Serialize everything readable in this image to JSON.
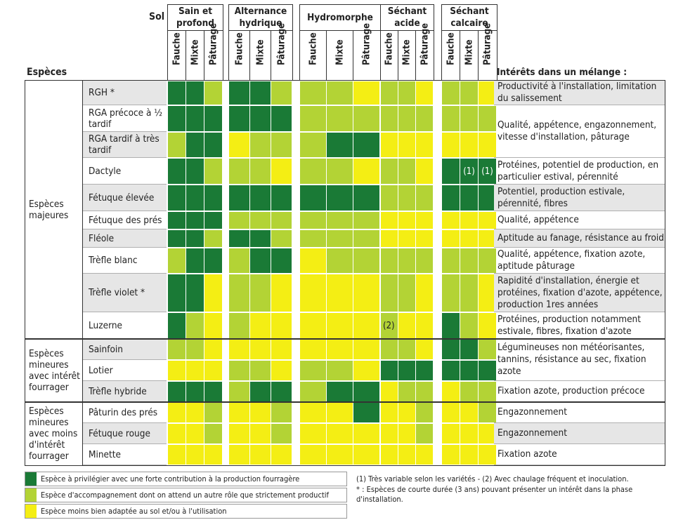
{
  "header": {
    "sol_label": "Sol",
    "especes_label": "Espèces",
    "interets_label": "Intérêts dans un mélange :"
  },
  "soils": [
    "Sain et profond",
    "Alternance hydrique",
    "Hydromorphe",
    "Séchant acide",
    "Séchant calcaire"
  ],
  "uses": [
    "Fauche",
    "Mixte",
    "Pâturage"
  ],
  "groups": [
    "Espèces majeures",
    "Espèces mineures avec intérêt fourrager",
    "Espèces mineures avec moins d'intérêt fourrager"
  ],
  "species": [
    {
      "name": "RGH *",
      "ratings": [
        [
          1,
          1,
          2
        ],
        [
          1,
          1,
          2
        ],
        [
          2,
          2,
          3
        ],
        [
          2,
          2,
          3
        ],
        [
          2,
          2,
          3
        ]
      ]
    },
    {
      "name": "RGA précoce à ½ tardif",
      "ratings": [
        [
          1,
          1,
          1
        ],
        [
          1,
          1,
          1
        ],
        [
          2,
          2,
          2
        ],
        [
          2,
          2,
          2
        ],
        [
          2,
          2,
          2
        ]
      ]
    },
    {
      "name": "RGA tardif à très tardif",
      "ratings": [
        [
          2,
          1,
          1
        ],
        [
          3,
          2,
          2
        ],
        [
          2,
          1,
          1
        ],
        [
          3,
          3,
          3
        ],
        [
          3,
          3,
          3
        ]
      ]
    },
    {
      "name": "Dactyle",
      "ratings": [
        [
          1,
          1,
          2
        ],
        [
          2,
          2,
          3
        ],
        [
          2,
          2,
          3
        ],
        [
          2,
          2,
          3
        ],
        [
          1,
          1,
          1
        ]
      ]
    },
    {
      "name": "Fétuque élevée",
      "ratings": [
        [
          1,
          1,
          1
        ],
        [
          1,
          1,
          1
        ],
        [
          1,
          1,
          1
        ],
        [
          2,
          2,
          2
        ],
        [
          1,
          1,
          1
        ]
      ]
    },
    {
      "name": "Fétuque des prés",
      "ratings": [
        [
          1,
          1,
          1
        ],
        [
          2,
          2,
          2
        ],
        [
          2,
          2,
          2
        ],
        [
          3,
          3,
          3
        ],
        [
          3,
          3,
          3
        ]
      ]
    },
    {
      "name": "Fléole",
      "ratings": [
        [
          1,
          1,
          2
        ],
        [
          1,
          1,
          2
        ],
        [
          2,
          2,
          2
        ],
        [
          3,
          3,
          3
        ],
        [
          3,
          3,
          3
        ]
      ]
    },
    {
      "name": "Trèfle blanc",
      "ratings": [
        [
          2,
          1,
          1
        ],
        [
          2,
          1,
          1
        ],
        [
          3,
          2,
          2
        ],
        [
          2,
          2,
          2
        ],
        [
          2,
          2,
          2
        ]
      ]
    },
    {
      "name": "Trèfle violet *",
      "ratings": [
        [
          1,
          1,
          3
        ],
        [
          2,
          2,
          3
        ],
        [
          3,
          3,
          3
        ],
        [
          2,
          2,
          3
        ],
        [
          2,
          2,
          3
        ]
      ]
    },
    {
      "name": "Luzerne",
      "ratings": [
        [
          1,
          2,
          3
        ],
        [
          2,
          3,
          3
        ],
        [
          3,
          3,
          3
        ],
        [
          2,
          3,
          3
        ],
        [
          1,
          2,
          3
        ]
      ]
    },
    {
      "name": "Sainfoin",
      "ratings": [
        [
          2,
          2,
          3
        ],
        [
          3,
          3,
          3
        ],
        [
          3,
          3,
          3
        ],
        [
          2,
          2,
          3
        ],
        [
          1,
          1,
          2
        ]
      ]
    },
    {
      "name": "Lotier",
      "ratings": [
        [
          3,
          3,
          3
        ],
        [
          2,
          2,
          3
        ],
        [
          2,
          2,
          3
        ],
        [
          1,
          1,
          1
        ],
        [
          1,
          1,
          1
        ]
      ]
    },
    {
      "name": "Trèfle hybride",
      "ratings": [
        [
          1,
          1,
          1
        ],
        [
          2,
          1,
          1
        ],
        [
          2,
          1,
          1
        ],
        [
          3,
          2,
          2
        ],
        [
          3,
          2,
          2
        ]
      ]
    },
    {
      "name": "Pâturin des prés",
      "ratings": [
        [
          3,
          3,
          2
        ],
        [
          3,
          3,
          2
        ],
        [
          3,
          3,
          1
        ],
        [
          3,
          3,
          2
        ],
        [
          3,
          3,
          2
        ]
      ]
    },
    {
      "name": "Fétuque rouge",
      "ratings": [
        [
          3,
          3,
          2
        ],
        [
          3,
          3,
          2
        ],
        [
          3,
          3,
          3
        ],
        [
          3,
          3,
          2
        ],
        [
          3,
          3,
          3
        ]
      ]
    },
    {
      "name": "Minette",
      "ratings": [
        [
          3,
          3,
          3
        ],
        [
          3,
          3,
          3
        ],
        [
          3,
          3,
          3
        ],
        [
          3,
          3,
          3
        ],
        [
          3,
          3,
          3
        ]
      ]
    }
  ],
  "cell_notes": [
    {
      "species": 3,
      "soil": 4,
      "use": 1,
      "text": "(1)"
    },
    {
      "species": 3,
      "soil": 4,
      "use": 2,
      "text": "(1)"
    },
    {
      "species": 9,
      "soil": 3,
      "use": 0,
      "text": "(2)"
    }
  ],
  "interests": [
    "Productivité à l'installation, limitation du salissement",
    "Qualité, appétence, engazonnement, vitesse d'installation, pâturage",
    "Protéines, potentiel de production, en particulier estival, pérennité",
    "Potentiel, production estivale, pérennité, fibres",
    "Qualité, appétence",
    "Aptitude au fanage, résistance au froid",
    "Qualité, appétence, fixation azote, aptitude pâturage",
    "Rapidité d'installation, énergie et protéines, fixation d'azote, appétence, production 1res années",
    "Protéines, production notamment estivale, fibres, fixation d'azote",
    "Légumineuses non météorisantes, tannins, résistance au sec, fixation azote",
    "Fixation azote, production précoce",
    "Engazonnement",
    "Engazonnement",
    "Fixation azote"
  ],
  "legend": [
    {
      "color": "#1a7a36",
      "text": "Espèce à privilégier avec une forte contribution à la production fourragère"
    },
    {
      "color": "#b3d335",
      "text": "Espèce d'accompagnement dont on attend un autre rôle que strictement productif"
    },
    {
      "color": "#f4ee14",
      "text": "Espèce moins bien adaptée au sol et/ou à l'utilisation"
    }
  ],
  "footnotes": {
    "note1": "(1) Très variable selon les variétés - (2) Avec chaulage fréquent et inoculation.",
    "note2": "* : Espèces de courte durée (3 ans) pouvant présenter un intérêt dans la phase d'installation."
  },
  "colors": {
    "level1": "#1a7a36",
    "level2": "#b3d335",
    "level3": "#f4ee14",
    "row_grey": "#e6e6e6"
  }
}
